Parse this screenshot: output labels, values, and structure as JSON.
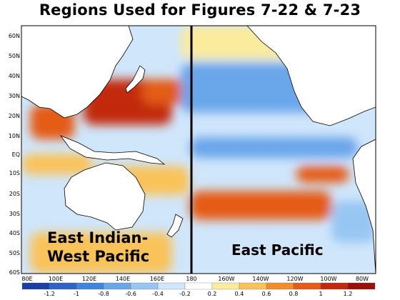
{
  "title": "Regions Used for Figures 7-22 & 7-23",
  "lat_labels": [
    "60N",
    "50N",
    "40N",
    "30N",
    "20N",
    "10N",
    "EQ",
    "10S",
    "20S",
    "30S",
    "40S",
    "50S",
    "60S"
  ],
  "lon_labels": [
    "80E",
    "100E",
    "120E",
    "140E",
    "160E",
    "180",
    "160W",
    "140W",
    "120W",
    "100W",
    "80W"
  ],
  "regions": [
    {
      "name_line1": "East Indian-",
      "name_line2": "West Pacific"
    },
    {
      "name": "East Pacific"
    }
  ],
  "divider_longitude": "180",
  "colorbar": {
    "labels": [
      "-1.2",
      "-1",
      "-0.8",
      "-0.6",
      "-0.4",
      "-0.2",
      "0.2",
      "0.4",
      "0.6",
      "0.8",
      "1",
      "1.2"
    ],
    "colors": [
      "#1a3fa6",
      "#2c64c8",
      "#3f86dd",
      "#6aa6ea",
      "#98c6f3",
      "#cfe6fb",
      "#ffffff",
      "#fbeb9c",
      "#f9c35a",
      "#f08e2a",
      "#e45c17",
      "#c3290f",
      "#9a1108"
    ]
  },
  "anomaly_fields": [
    {
      "lon": [
        115,
        165
      ],
      "lat": [
        12,
        34
      ],
      "value": 1.2
    },
    {
      "lon": [
        148,
        185
      ],
      "lat": [
        22,
        34
      ],
      "value": 1.0
    },
    {
      "lon": [
        85,
        110
      ],
      "lat": [
        5,
        22
      ],
      "value": 0.9
    },
    {
      "lon": [
        80,
        120
      ],
      "lat": [
        -12,
        -2
      ],
      "value": 0.5
    },
    {
      "lon": [
        120,
        175
      ],
      "lat": [
        -22,
        -8
      ],
      "value": 0.6
    },
    {
      "lon": [
        175,
        255
      ],
      "lat": [
        -34,
        -20
      ],
      "value": 1.0
    },
    {
      "lon": [
        235,
        265
      ],
      "lat": [
        -16,
        -8
      ],
      "value": 0.9
    },
    {
      "lon": [
        170,
        265
      ],
      "lat": [
        18,
        42
      ],
      "value": -0.6
    },
    {
      "lon": [
        175,
        270
      ],
      "lat": [
        -4,
        6
      ],
      "value": -0.7
    },
    {
      "lon": [
        85,
        165
      ],
      "lat": [
        -60,
        -40
      ],
      "value": 0.5
    },
    {
      "lon": [
        255,
        280
      ],
      "lat": [
        -45,
        -25
      ],
      "value": -0.5
    },
    {
      "lon": [
        170,
        240
      ],
      "lat": [
        44,
        60
      ],
      "value": 0.3
    }
  ]
}
